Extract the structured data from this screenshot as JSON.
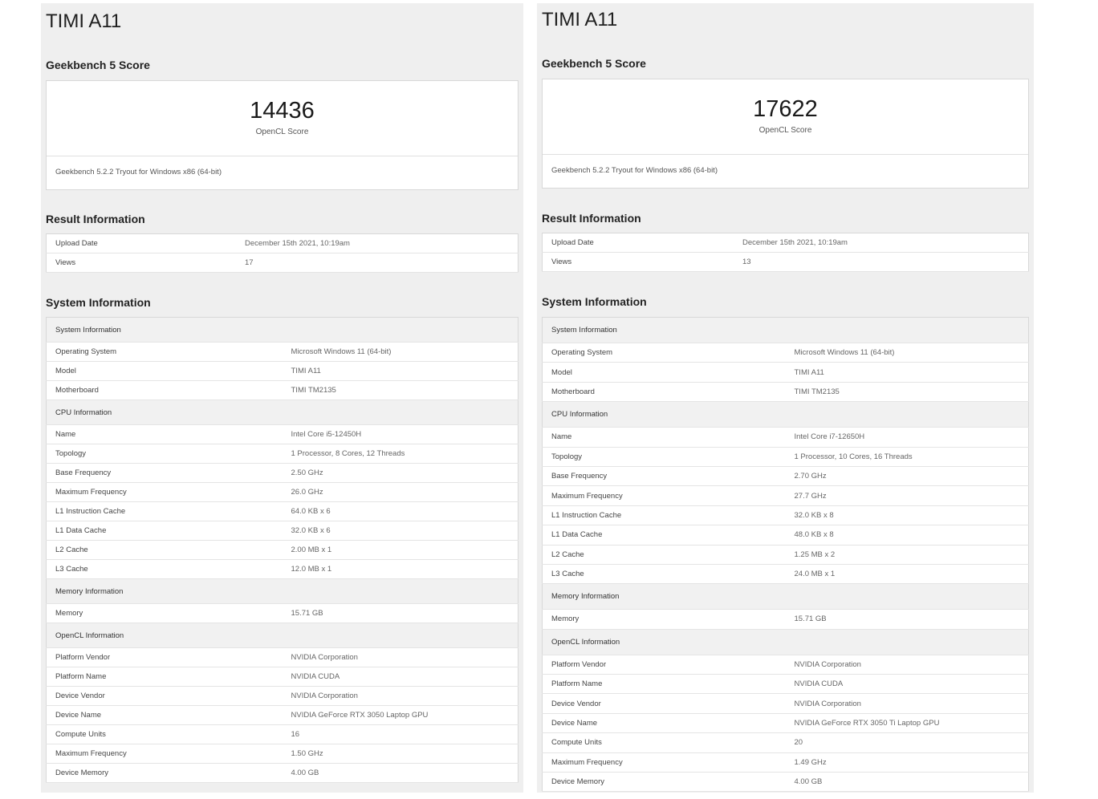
{
  "left": {
    "device_title": "TIMI A11",
    "score_section_title": "Geekbench 5 Score",
    "score_value": "14436",
    "score_label": "OpenCL Score",
    "score_footer": "Geekbench 5.2.2 Tryout for Windows x86 (64-bit)",
    "result_section_title": "Result Information",
    "result_rows": [
      {
        "key": "Upload Date",
        "value": "December 15th 2021, 10:19am"
      },
      {
        "key": "Views",
        "value": "17"
      }
    ],
    "system_section_title": "System Information",
    "system_groups": [
      {
        "heading": "System Information",
        "rows": [
          {
            "key": "Operating System",
            "value": "Microsoft Windows 11 (64-bit)"
          },
          {
            "key": "Model",
            "value": "TIMI A11"
          },
          {
            "key": "Motherboard",
            "value": "TIMI TM2135"
          }
        ]
      },
      {
        "heading": "CPU Information",
        "rows": [
          {
            "key": "Name",
            "value": "Intel Core i5-12450H"
          },
          {
            "key": "Topology",
            "value": "1 Processor, 8 Cores, 12 Threads"
          },
          {
            "key": "Base Frequency",
            "value": "2.50 GHz"
          },
          {
            "key": "Maximum Frequency",
            "value": "26.0 GHz"
          },
          {
            "key": "L1 Instruction Cache",
            "value": "64.0 KB x 6"
          },
          {
            "key": "L1 Data Cache",
            "value": "32.0 KB x 6"
          },
          {
            "key": "L2 Cache",
            "value": "2.00 MB x 1"
          },
          {
            "key": "L3 Cache",
            "value": "12.0 MB x 1"
          }
        ]
      },
      {
        "heading": "Memory Information",
        "rows": [
          {
            "key": "Memory",
            "value": "15.71 GB"
          }
        ]
      },
      {
        "heading": "OpenCL Information",
        "rows": [
          {
            "key": "Platform Vendor",
            "value": "NVIDIA Corporation"
          },
          {
            "key": "Platform Name",
            "value": "NVIDIA CUDA"
          },
          {
            "key": "Device Vendor",
            "value": "NVIDIA Corporation"
          },
          {
            "key": "Device Name",
            "value": "NVIDIA GeForce RTX 3050 Laptop GPU"
          },
          {
            "key": "Compute Units",
            "value": "16"
          },
          {
            "key": "Maximum Frequency",
            "value": "1.50 GHz"
          },
          {
            "key": "Device Memory",
            "value": "4.00 GB"
          }
        ]
      }
    ]
  },
  "right": {
    "device_title": "TIMI A11",
    "score_section_title": "Geekbench 5 Score",
    "score_value": "17622",
    "score_label": "OpenCL Score",
    "score_footer": "Geekbench 5.2.2 Tryout for Windows x86 (64-bit)",
    "result_section_title": "Result Information",
    "result_rows": [
      {
        "key": "Upload Date",
        "value": "December 15th 2021, 10:19am"
      },
      {
        "key": "Views",
        "value": "13"
      }
    ],
    "system_section_title": "System Information",
    "system_groups": [
      {
        "heading": "System Information",
        "rows": [
          {
            "key": "Operating System",
            "value": "Microsoft Windows 11 (64-bit)"
          },
          {
            "key": "Model",
            "value": "TIMI A11"
          },
          {
            "key": "Motherboard",
            "value": "TIMI TM2135"
          }
        ]
      },
      {
        "heading": "CPU Information",
        "rows": [
          {
            "key": "Name",
            "value": "Intel Core i7-12650H"
          },
          {
            "key": "Topology",
            "value": "1 Processor, 10 Cores, 16 Threads"
          },
          {
            "key": "Base Frequency",
            "value": "2.70 GHz"
          },
          {
            "key": "Maximum Frequency",
            "value": "27.7 GHz"
          },
          {
            "key": "L1 Instruction Cache",
            "value": "32.0 KB x 8"
          },
          {
            "key": "L1 Data Cache",
            "value": "48.0 KB x 8"
          },
          {
            "key": "L2 Cache",
            "value": "1.25 MB x 2"
          },
          {
            "key": "L3 Cache",
            "value": "24.0 MB x 1"
          }
        ]
      },
      {
        "heading": "Memory Information",
        "rows": [
          {
            "key": "Memory",
            "value": "15.71 GB"
          }
        ]
      },
      {
        "heading": "OpenCL Information",
        "rows": [
          {
            "key": "Platform Vendor",
            "value": "NVIDIA Corporation"
          },
          {
            "key": "Platform Name",
            "value": "NVIDIA CUDA"
          },
          {
            "key": "Device Vendor",
            "value": "NVIDIA Corporation"
          },
          {
            "key": "Device Name",
            "value": "NVIDIA GeForce RTX 3050 Ti Laptop GPU"
          },
          {
            "key": "Compute Units",
            "value": "20"
          },
          {
            "key": "Maximum Frequency",
            "value": "1.49 GHz"
          },
          {
            "key": "Device Memory",
            "value": "4.00 GB"
          }
        ]
      }
    ]
  }
}
